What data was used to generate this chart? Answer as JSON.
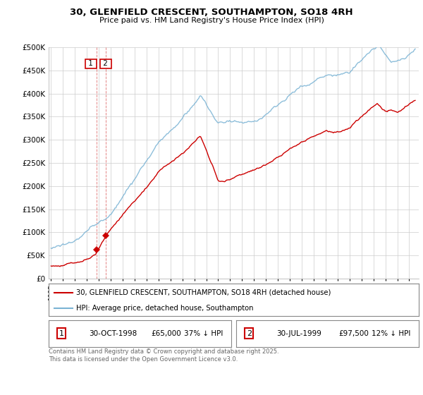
{
  "title_line1": "30, GLENFIELD CRESCENT, SOUTHAMPTON, SO18 4RH",
  "title_line2": "Price paid vs. HM Land Registry's House Price Index (HPI)",
  "legend_line1": "30, GLENFIELD CRESCENT, SOUTHAMPTON, SO18 4RH (detached house)",
  "legend_line2": "HPI: Average price, detached house, Southampton",
  "footer": "Contains HM Land Registry data © Crown copyright and database right 2025.\nThis data is licensed under the Open Government Licence v3.0.",
  "transaction1_num": "1",
  "transaction1_date": "30-OCT-1998",
  "transaction1_price": "£65,000",
  "transaction1_hpi": "37% ↓ HPI",
  "transaction2_num": "2",
  "transaction2_date": "30-JUL-1999",
  "transaction2_price": "£97,500",
  "transaction2_hpi": "12% ↓ HPI",
  "hpi_color": "#7ab3d4",
  "price_color": "#cc0000",
  "marker_color": "#cc0000",
  "vline_color": "#dd6666",
  "background_color": "#ffffff",
  "grid_color": "#cccccc",
  "ylim_min": 0,
  "ylim_max": 500000,
  "xstart_year": 1995,
  "xend_year": 2025
}
